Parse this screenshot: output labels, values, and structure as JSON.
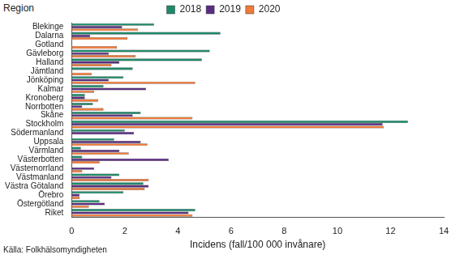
{
  "chart_data": {
    "type": "bar",
    "orientation": "horizontal",
    "y_label": "Region",
    "x_label": "Incidens (fall/100 000 invånare)",
    "annotations": [
      "Källa: Folkhälsomyndigheten"
    ],
    "categories": [
      "Blekinge",
      "Dalarna",
      "Gotland",
      "Gävleborg",
      "Halland",
      "Jämtland",
      "Jönköping",
      "Kalmar",
      "Kronoberg",
      "Norrbotten",
      "Skåne",
      "Stockholm",
      "Södermanland",
      "Uppsala",
      "Värmland",
      "Västerbotten",
      "Västernorrland",
      "Västmanland",
      "Västra Götaland",
      "Örebro",
      "Östergötland",
      "Riket"
    ],
    "series": [
      {
        "name": "2018",
        "color": "#1f8a6b",
        "values": [
          3.1,
          5.6,
          0,
          5.2,
          4.9,
          2.3,
          1.95,
          1.2,
          0.5,
          0.8,
          2.6,
          12.65,
          2.0,
          1.6,
          0.35,
          0.4,
          0,
          1.8,
          2.7,
          1.95,
          1.05,
          4.65
        ]
      },
      {
        "name": "2019",
        "color": "#5a2d82",
        "values": [
          1.9,
          0.7,
          0,
          1.4,
          1.8,
          0,
          1.4,
          2.8,
          0.5,
          0.4,
          2.3,
          11.7,
          2.35,
          2.6,
          1.8,
          3.65,
          0.85,
          1.5,
          2.9,
          0.3,
          1.25,
          4.4
        ]
      },
      {
        "name": "2020",
        "color": "#f07a3a",
        "values": [
          2.5,
          2.1,
          1.7,
          2.4,
          1.5,
          0.75,
          4.65,
          0.85,
          1.0,
          1.2,
          4.55,
          11.75,
          0,
          2.85,
          2.15,
          1.05,
          0.4,
          2.9,
          2.75,
          0.3,
          0.65,
          4.55
        ]
      }
    ],
    "xlim": [
      0,
      14
    ],
    "xticks": [
      0,
      2,
      4,
      6,
      8,
      10,
      12,
      14
    ],
    "grid": false,
    "legend": "top"
  }
}
